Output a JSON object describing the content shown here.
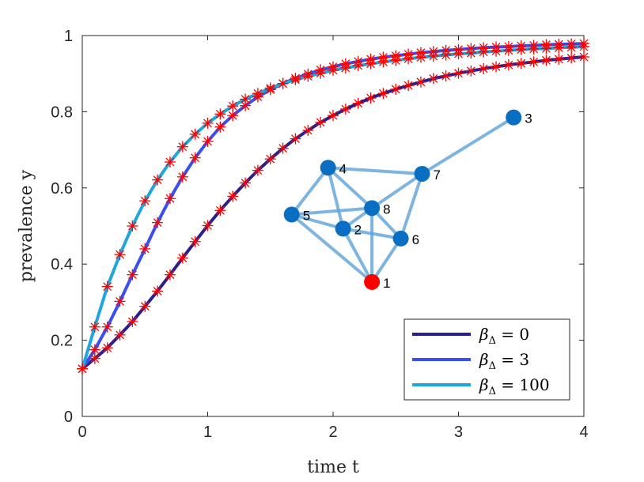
{
  "chart_data": {
    "type": "line",
    "xlabel": "time t",
    "ylabel": "prevalence y",
    "xlim": [
      0,
      4
    ],
    "ylim": [
      0,
      1
    ],
    "xticks": [
      "0",
      "1",
      "2",
      "3",
      "4"
    ],
    "yticks": [
      "0",
      "0.2",
      "0.4",
      "0.6",
      "0.8",
      "1"
    ],
    "grid": false,
    "legend_position": "bottom-right",
    "marker_color": "#ff0000",
    "marker_style": "asterisk",
    "x": [
      0.0,
      0.1,
      0.2,
      0.3,
      0.4,
      0.5,
      0.6,
      0.7,
      0.8,
      0.9,
      1.0,
      1.1,
      1.2,
      1.3,
      1.4,
      1.5,
      1.6,
      1.7,
      1.8,
      1.9,
      2.0,
      2.1,
      2.2,
      2.3,
      2.4,
      2.5,
      2.6,
      2.7,
      2.8,
      2.9,
      3.0,
      3.1,
      3.2,
      3.3,
      3.4,
      3.5,
      3.6,
      3.7,
      3.8,
      3.9,
      4.0
    ],
    "series": [
      {
        "name": "β_Δ = 0",
        "color": "#2a1f8f",
        "values": [
          0.125,
          0.152,
          0.18,
          0.214,
          0.249,
          0.289,
          0.329,
          0.372,
          0.416,
          0.459,
          0.501,
          0.541,
          0.578,
          0.613,
          0.646,
          0.676,
          0.704,
          0.729,
          0.751,
          0.772,
          0.79,
          0.807,
          0.822,
          0.836,
          0.848,
          0.859,
          0.869,
          0.878,
          0.887,
          0.894,
          0.901,
          0.907,
          0.913,
          0.918,
          0.923,
          0.927,
          0.931,
          0.935,
          0.938,
          0.941,
          0.944
        ]
      },
      {
        "name": "β_Δ = 3",
        "color": "#3a4fef",
        "values": [
          0.125,
          0.175,
          0.235,
          0.302,
          0.372,
          0.44,
          0.509,
          0.572,
          0.629,
          0.679,
          0.722,
          0.76,
          0.79,
          0.816,
          0.839,
          0.858,
          0.874,
          0.888,
          0.899,
          0.91,
          0.918,
          0.926,
          0.932,
          0.938,
          0.943,
          0.947,
          0.951,
          0.955,
          0.958,
          0.961,
          0.963,
          0.966,
          0.968,
          0.97,
          0.971,
          0.973,
          0.974,
          0.976,
          0.977,
          0.978,
          0.979
        ]
      },
      {
        "name": "β_Δ = 100",
        "color": "#1fa6dc",
        "values": [
          0.125,
          0.235,
          0.341,
          0.425,
          0.5,
          0.566,
          0.621,
          0.668,
          0.708,
          0.741,
          0.77,
          0.794,
          0.815,
          0.833,
          0.848,
          0.862,
          0.874,
          0.884,
          0.893,
          0.901,
          0.909,
          0.915,
          0.921,
          0.926,
          0.931,
          0.935,
          0.939,
          0.943,
          0.946,
          0.949,
          0.952,
          0.954,
          0.957,
          0.959,
          0.961,
          0.963,
          0.965,
          0.966,
          0.968,
          0.969,
          0.971
        ]
      }
    ],
    "legend": [
      {
        "label": "β",
        "sub": "Δ",
        "suffix": " = 0"
      },
      {
        "label": "β",
        "sub": "Δ",
        "suffix": " = 3"
      },
      {
        "label": "β",
        "sub": "Δ",
        "suffix": " = 100"
      }
    ]
  },
  "network": {
    "node_color": "#0a6fc2",
    "seed_color": "#ff0000",
    "edge_color": "#5da3d8",
    "nodes": [
      {
        "id": "1",
        "x": 2.31,
        "y": 0.353,
        "seed": true
      },
      {
        "id": "2",
        "x": 2.08,
        "y": 0.493,
        "seed": false
      },
      {
        "id": "3",
        "x": 3.44,
        "y": 0.785,
        "seed": false
      },
      {
        "id": "4",
        "x": 1.96,
        "y": 0.653,
        "seed": false
      },
      {
        "id": "5",
        "x": 1.67,
        "y": 0.53,
        "seed": false
      },
      {
        "id": "6",
        "x": 2.54,
        "y": 0.467,
        "seed": false
      },
      {
        "id": "7",
        "x": 2.71,
        "y": 0.637,
        "seed": false
      },
      {
        "id": "8",
        "x": 2.31,
        "y": 0.547,
        "seed": false
      }
    ],
    "edges": [
      [
        "1",
        "2"
      ],
      [
        "1",
        "6"
      ],
      [
        "1",
        "8"
      ],
      [
        "1",
        "5"
      ],
      [
        "2",
        "4"
      ],
      [
        "2",
        "5"
      ],
      [
        "2",
        "8"
      ],
      [
        "2",
        "6"
      ],
      [
        "4",
        "5"
      ],
      [
        "4",
        "7"
      ],
      [
        "4",
        "8"
      ],
      [
        "5",
        "8"
      ],
      [
        "6",
        "7"
      ],
      [
        "6",
        "8"
      ],
      [
        "7",
        "8"
      ],
      [
        "7",
        "3"
      ]
    ]
  }
}
